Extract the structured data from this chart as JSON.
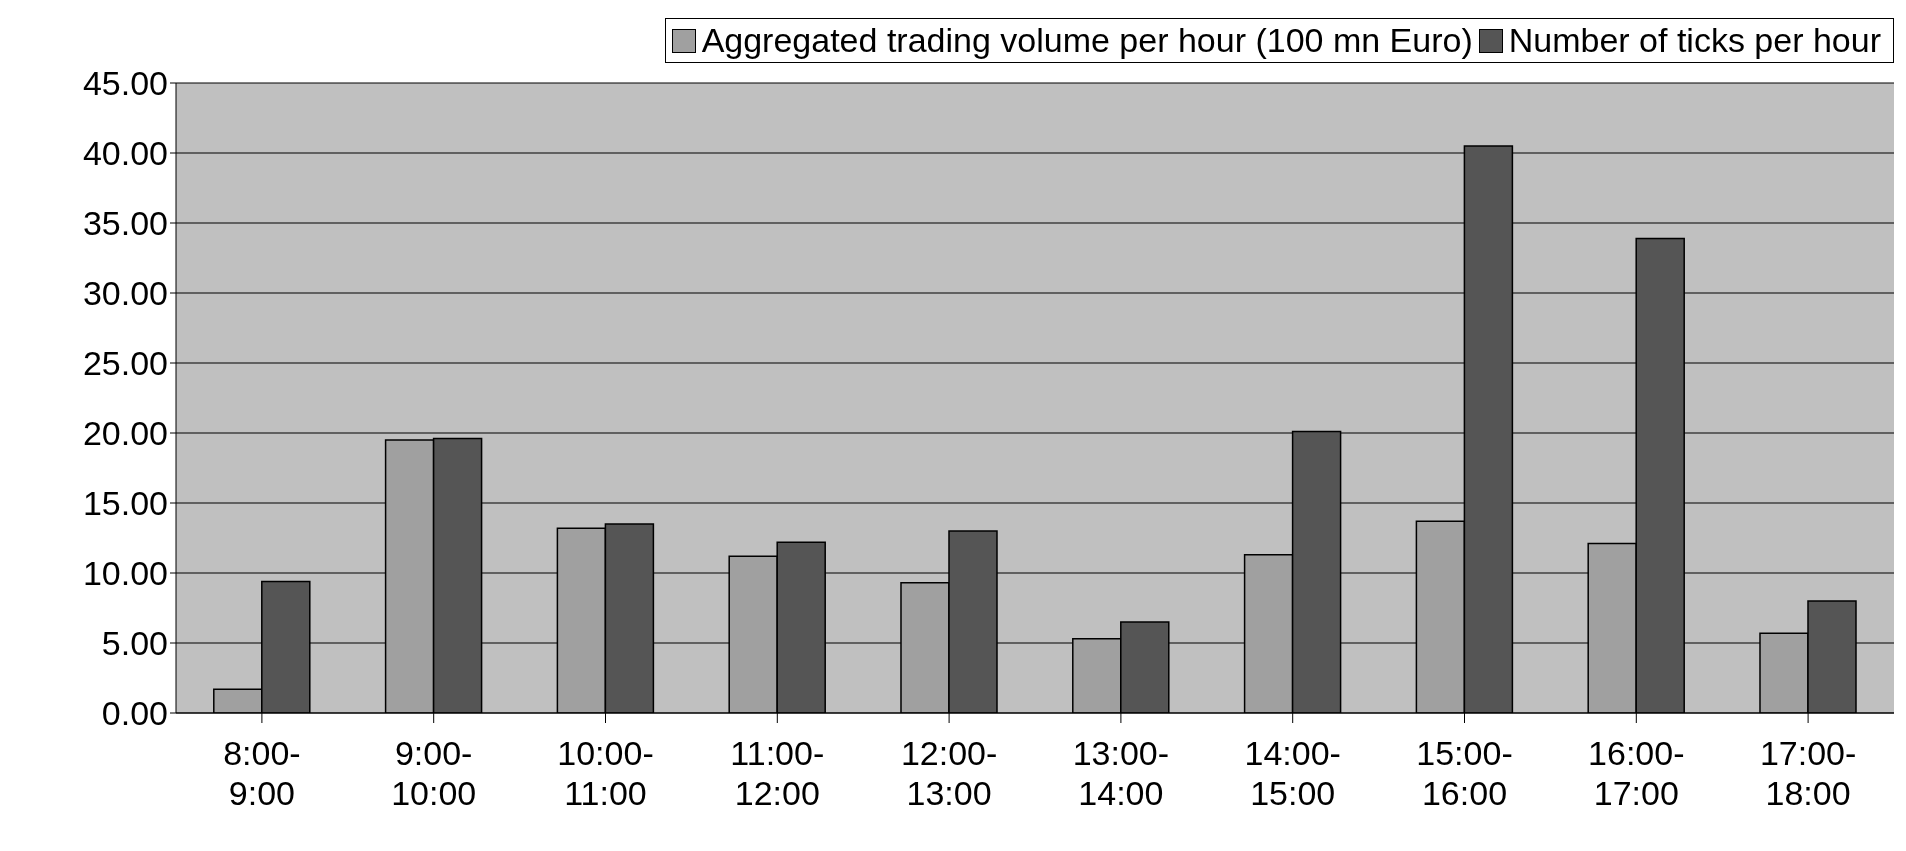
{
  "chart_data": {
    "type": "bar",
    "categories": [
      "8:00-9:00",
      "9:00-10:00",
      "10:00-11:00",
      "11:00-12:00",
      "12:00-13:00",
      "13:00-14:00",
      "14:00-15:00",
      "15:00-16:00",
      "16:00-17:00",
      "17:00-18:00"
    ],
    "series": [
      {
        "name": "Aggregated trading volume per hour (100 mn Euro)",
        "color": "#a0a0a0",
        "values": [
          1.7,
          19.5,
          13.2,
          11.2,
          9.3,
          5.3,
          11.3,
          13.7,
          12.1,
          5.7
        ]
      },
      {
        "name": "Number of ticks per hour",
        "color": "#555555",
        "values": [
          9.4,
          19.6,
          13.5,
          12.2,
          13.0,
          6.5,
          20.1,
          40.5,
          33.9,
          8.0
        ]
      }
    ],
    "ylim": [
      0,
      45
    ],
    "yticks": [
      {
        "value": 0,
        "label": "0.00"
      },
      {
        "value": 5,
        "label": "5.00"
      },
      {
        "value": 10,
        "label": "10.00"
      },
      {
        "value": 15,
        "label": "15.00"
      },
      {
        "value": 20,
        "label": "20.00"
      },
      {
        "value": 25,
        "label": "25.00"
      },
      {
        "value": 30,
        "label": "30.00"
      },
      {
        "value": 35,
        "label": "35.00"
      },
      {
        "value": 40,
        "label": "40.00"
      },
      {
        "value": 45,
        "label": "45.00"
      }
    ],
    "grid": "y",
    "legend": "top right"
  }
}
